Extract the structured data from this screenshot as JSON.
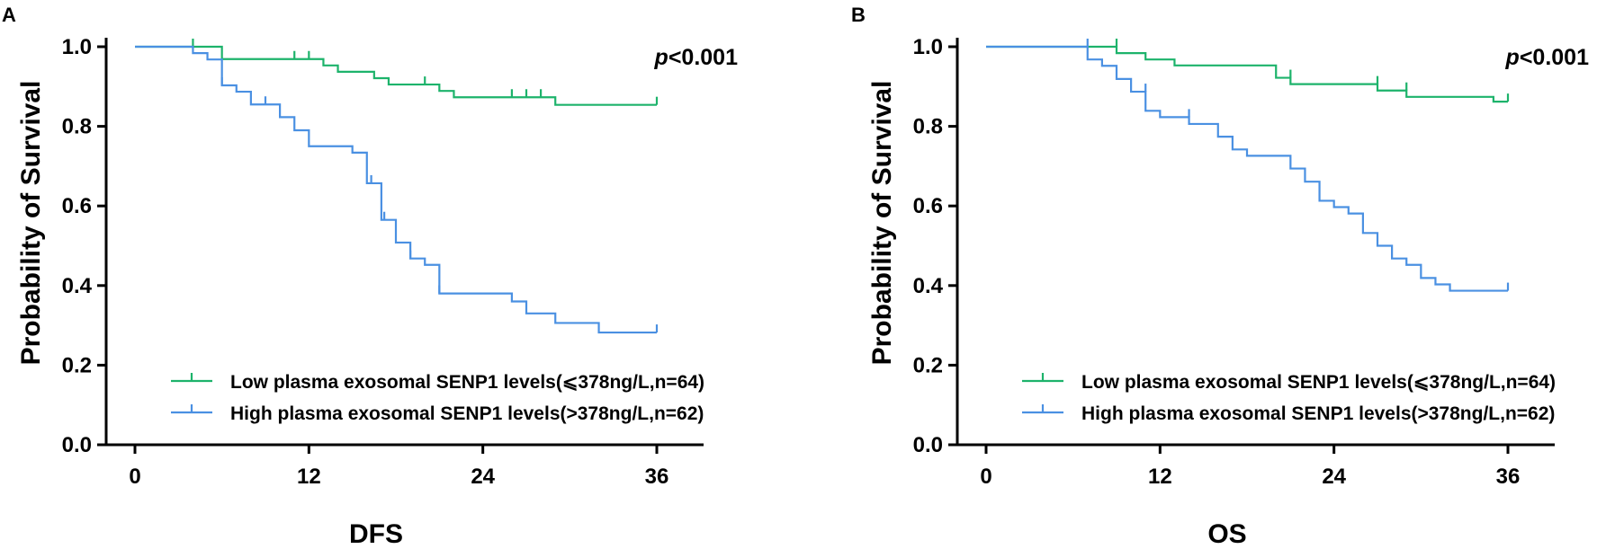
{
  "figure": {
    "panels": [
      "A",
      "B"
    ]
  },
  "chart_data": [
    {
      "panel": "A",
      "type": "line",
      "subtype": "kaplan-meier",
      "title": "",
      "xlabel": "DFS",
      "ylabel": "Probability of Survival",
      "xlim": [
        0,
        36
      ],
      "ylim": [
        0,
        1.0
      ],
      "xticks": [
        0,
        12,
        24,
        36
      ],
      "xtick_labels": [
        "0",
        "12",
        "24",
        "36"
      ],
      "yticks": [
        0,
        0.2,
        0.4,
        0.6,
        0.8,
        1.0
      ],
      "ytick_labels": [
        "0.0",
        "0.2",
        "0.4",
        "0.6",
        "0.8",
        "1.0"
      ],
      "annotation": {
        "p_symbol": "p",
        "p_value": "<0.001"
      },
      "legend_position": "bottom-left",
      "series": [
        {
          "name": "Low plasma exosomal SENP1 levels(⩽378ng/L,n=64)",
          "color": "#1db36b",
          "steps": [
            [
              0,
              1.0
            ],
            [
              6,
              0.969
            ],
            [
              13,
              0.953
            ],
            [
              14,
              0.937
            ],
            [
              16.5,
              0.921
            ],
            [
              17.5,
              0.905
            ],
            [
              21,
              0.889
            ],
            [
              22,
              0.873
            ],
            [
              29,
              0.854
            ]
          ],
          "censors": [
            [
              4,
              1.0
            ],
            [
              11,
              0.969
            ],
            [
              12,
              0.969
            ],
            [
              20,
              0.905
            ],
            [
              26,
              0.873
            ],
            [
              27,
              0.873
            ],
            [
              28,
              0.873
            ],
            [
              36,
              0.854
            ]
          ],
          "end_x": 36
        },
        {
          "name": "High plasma exosomal SENP1 levels(>378ng/L,n=62)",
          "color": "#4a90e2",
          "steps": [
            [
              0,
              1.0
            ],
            [
              4,
              0.984
            ],
            [
              5,
              0.968
            ],
            [
              6,
              0.903
            ],
            [
              7,
              0.887
            ],
            [
              8,
              0.855
            ],
            [
              10,
              0.823
            ],
            [
              11,
              0.79
            ],
            [
              12,
              0.75
            ],
            [
              15,
              0.734
            ],
            [
              16,
              0.657
            ],
            [
              17,
              0.565
            ],
            [
              18,
              0.508
            ],
            [
              19,
              0.468
            ],
            [
              20,
              0.452
            ],
            [
              21,
              0.38
            ],
            [
              26,
              0.36
            ],
            [
              27,
              0.33
            ],
            [
              29,
              0.306
            ],
            [
              32,
              0.282
            ]
          ],
          "censors": [
            [
              6,
              0.903
            ],
            [
              9,
              0.855
            ],
            [
              16.3,
              0.657
            ],
            [
              17.2,
              0.565
            ],
            [
              19,
              0.468
            ],
            [
              21,
              0.38
            ],
            [
              36,
              0.282
            ]
          ],
          "end_x": 36
        }
      ]
    },
    {
      "panel": "B",
      "type": "line",
      "subtype": "kaplan-meier",
      "title": "",
      "xlabel": "OS",
      "ylabel": "Probability of Survival",
      "xlim": [
        0,
        36
      ],
      "ylim": [
        0,
        1.0
      ],
      "xticks": [
        0,
        12,
        24,
        36
      ],
      "xtick_labels": [
        "0",
        "12",
        "24",
        "36"
      ],
      "yticks": [
        0,
        0.2,
        0.4,
        0.6,
        0.8,
        1.0
      ],
      "ytick_labels": [
        "0.0",
        "0.2",
        "0.4",
        "0.6",
        "0.8",
        "1.0"
      ],
      "annotation": {
        "p_symbol": "p",
        "p_value": "<0.001"
      },
      "legend_position": "bottom-left",
      "series": [
        {
          "name": "Low plasma exosomal SENP1 levels(⩽378ng/L,n=64)",
          "color": "#1db36b",
          "steps": [
            [
              0,
              1.0
            ],
            [
              9,
              0.984
            ],
            [
              11,
              0.968
            ],
            [
              13,
              0.953
            ],
            [
              20,
              0.922
            ],
            [
              21,
              0.906
            ],
            [
              27,
              0.89
            ],
            [
              29,
              0.874
            ],
            [
              35,
              0.862
            ]
          ],
          "censors": [
            [
              9,
              1.0
            ],
            [
              21,
              0.922
            ],
            [
              27,
              0.906
            ],
            [
              29,
              0.89
            ],
            [
              36,
              0.862
            ]
          ],
          "end_x": 36
        },
        {
          "name": "High plasma exosomal SENP1 levels(>378ng/L,n=62)",
          "color": "#4a90e2",
          "steps": [
            [
              0,
              1.0
            ],
            [
              7,
              0.968
            ],
            [
              8,
              0.952
            ],
            [
              9,
              0.919
            ],
            [
              10,
              0.887
            ],
            [
              11,
              0.839
            ],
            [
              12,
              0.823
            ],
            [
              14,
              0.806
            ],
            [
              16,
              0.774
            ],
            [
              17,
              0.742
            ],
            [
              18,
              0.726
            ],
            [
              21,
              0.694
            ],
            [
              22,
              0.661
            ],
            [
              23,
              0.613
            ],
            [
              24,
              0.597
            ],
            [
              25,
              0.581
            ],
            [
              26,
              0.532
            ],
            [
              27,
              0.5
            ],
            [
              28,
              0.468
            ],
            [
              29,
              0.452
            ],
            [
              30,
              0.419
            ],
            [
              31,
              0.403
            ],
            [
              32,
              0.387
            ]
          ],
          "censors": [
            [
              7,
              1.0
            ],
            [
              11,
              0.887
            ],
            [
              14,
              0.823
            ],
            [
              36,
              0.387
            ]
          ],
          "end_x": 36
        }
      ]
    }
  ]
}
